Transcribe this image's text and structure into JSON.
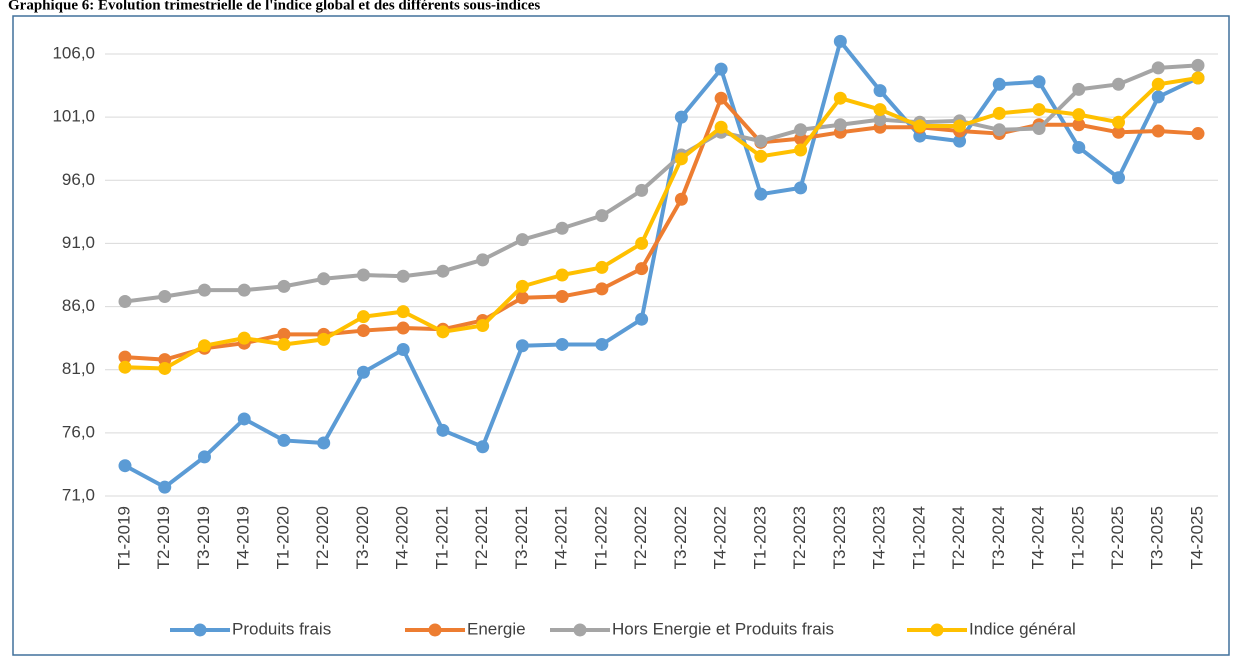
{
  "chart_data": {
    "type": "line",
    "title": "Graphique 6: Evolution trimestrielle de l'indice global et des différents sous-indices",
    "categories": [
      "T1-2019",
      "T2-2019",
      "T3-2019",
      "T4-2019",
      "T1-2020",
      "T2-2020",
      "T3-2020",
      "T4-2020",
      "T1-2021",
      "T2-2021",
      "T3-2021",
      "T4-2021",
      "T1-2022",
      "T2-2022",
      "T3-2022",
      "T4-2022",
      "T1-2023",
      "T2-2023",
      "T3-2023",
      "T4-2023",
      "T1-2024",
      "T2-2024",
      "T3-2024",
      "T4-2024",
      "T1-2025",
      "T2-2025",
      "T3-2025",
      "T4-2025"
    ],
    "series": [
      {
        "name": "Produits frais",
        "color": "#5b9bd5",
        "values": [
          73.4,
          71.7,
          74.1,
          77.1,
          75.4,
          75.2,
          80.8,
          82.6,
          76.2,
          74.9,
          82.9,
          83.0,
          83.0,
          85.0,
          101.0,
          104.8,
          94.9,
          95.4,
          107.0,
          103.1,
          99.5,
          99.1,
          103.6,
          103.8,
          98.6,
          96.2,
          102.6,
          104.1
        ]
      },
      {
        "name": "Energie",
        "color": "#ed7d31",
        "values": [
          82.0,
          81.8,
          82.7,
          83.1,
          83.8,
          83.8,
          84.1,
          84.3,
          84.2,
          84.9,
          86.7,
          86.8,
          87.4,
          89.0,
          94.5,
          102.5,
          99.0,
          99.3,
          99.8,
          100.2,
          100.2,
          99.9,
          99.7,
          100.4,
          100.4,
          99.8,
          99.9,
          99.7
        ]
      },
      {
        "name": "Hors Energie et Produits frais",
        "color": "#a5a5a5",
        "values": [
          86.4,
          86.8,
          87.3,
          87.3,
          87.6,
          88.2,
          88.5,
          88.4,
          88.8,
          89.7,
          91.3,
          92.2,
          93.2,
          95.2,
          98.0,
          99.8,
          99.1,
          100.0,
          100.4,
          100.8,
          100.6,
          100.7,
          100.0,
          100.1,
          103.2,
          103.6,
          104.9,
          105.1
        ]
      },
      {
        "name": "Indice général",
        "color": "#ffc000",
        "values": [
          81.2,
          81.1,
          82.9,
          83.5,
          83.0,
          83.4,
          85.2,
          85.6,
          84.0,
          84.5,
          87.6,
          88.5,
          89.1,
          91.0,
          97.7,
          100.2,
          97.9,
          98.4,
          102.5,
          101.6,
          100.3,
          100.3,
          101.3,
          101.6,
          101.2,
          100.6,
          103.6,
          104.1
        ]
      }
    ],
    "ylim": [
      71,
      107
    ],
    "yticks": [
      {
        "value": 71,
        "label": "71,0"
      },
      {
        "value": 76,
        "label": "76,0"
      },
      {
        "value": 81,
        "label": "81,0"
      },
      {
        "value": 86,
        "label": "86,0"
      },
      {
        "value": 91,
        "label": "91,0"
      },
      {
        "value": 96,
        "label": "96,0"
      },
      {
        "value": 101,
        "label": "101,0"
      },
      {
        "value": 106,
        "label": "106,0"
      }
    ],
    "grid": true
  }
}
